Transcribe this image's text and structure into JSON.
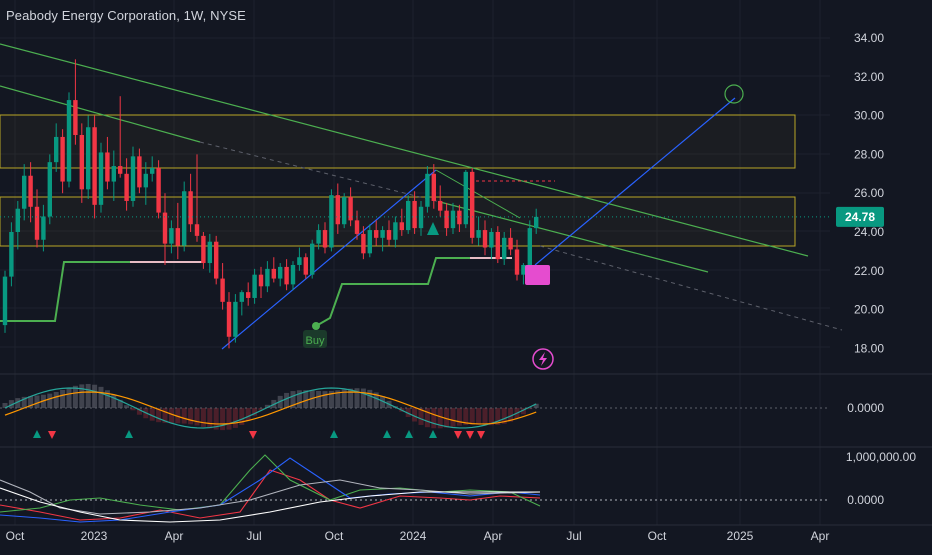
{
  "title": "Peabody Energy Corporation, 1W, NYSE",
  "chart_data": {
    "type": "candlestick",
    "symbol": "Peabody Energy Corporation",
    "interval": "1W",
    "exchange": "NYSE",
    "last_price": 24.78,
    "price_axis": {
      "ticks": [
        "34.00",
        "32.00",
        "30.00",
        "28.00",
        "26.00",
        "24.00",
        "22.00",
        "20.00",
        "18.00"
      ],
      "range": [
        17.2,
        35.0
      ]
    },
    "time_axis": {
      "ticks": [
        "Oct",
        "2023",
        "Apr",
        "Jul",
        "Oct",
        "2024",
        "Apr",
        "Jul",
        "Oct",
        "2025",
        "Apr"
      ]
    },
    "candles": [
      [
        19.2,
        22.0,
        18.8,
        21.7
      ],
      [
        21.7,
        24.5,
        21.2,
        24.0
      ],
      [
        24.0,
        25.6,
        23.1,
        25.2
      ],
      [
        25.2,
        27.5,
        24.6,
        26.9
      ],
      [
        26.9,
        27.6,
        24.5,
        25.3
      ],
      [
        25.3,
        26.2,
        23.2,
        23.6
      ],
      [
        23.6,
        25.4,
        23.0,
        24.8
      ],
      [
        24.8,
        28.0,
        24.4,
        27.6
      ],
      [
        27.6,
        29.6,
        27.1,
        28.9
      ],
      [
        28.9,
        29.3,
        26.0,
        26.6
      ],
      [
        26.6,
        31.2,
        26.3,
        30.8
      ],
      [
        30.8,
        32.9,
        28.5,
        29.0
      ],
      [
        29.0,
        29.6,
        25.5,
        26.2
      ],
      [
        26.2,
        30.0,
        25.7,
        29.4
      ],
      [
        29.4,
        30.0,
        24.7,
        25.4
      ],
      [
        25.4,
        28.6,
        25.0,
        28.1
      ],
      [
        28.1,
        28.9,
        26.2,
        26.6
      ],
      [
        26.6,
        28.2,
        25.6,
        27.4
      ],
      [
        27.4,
        31.0,
        26.8,
        27.0
      ],
      [
        27.0,
        27.8,
        25.1,
        25.6
      ],
      [
        25.6,
        28.4,
        25.3,
        27.9
      ],
      [
        27.9,
        28.3,
        26.0,
        26.3
      ],
      [
        26.3,
        27.6,
        25.4,
        27.0
      ],
      [
        27.0,
        27.9,
        26.6,
        27.3
      ],
      [
        27.3,
        27.7,
        24.7,
        25.0
      ],
      [
        25.0,
        26.0,
        22.3,
        23.4
      ],
      [
        23.4,
        24.6,
        22.9,
        24.2
      ],
      [
        24.2,
        25.5,
        22.6,
        23.3
      ],
      [
        23.3,
        26.6,
        23.0,
        26.1
      ],
      [
        26.1,
        27.0,
        24.0,
        24.4
      ],
      [
        24.4,
        28.0,
        23.5,
        23.8
      ],
      [
        23.8,
        24.0,
        22.1,
        22.4
      ],
      [
        22.4,
        23.9,
        21.9,
        23.5
      ],
      [
        23.5,
        23.8,
        21.3,
        21.6
      ],
      [
        21.6,
        22.4,
        20.0,
        20.4
      ],
      [
        20.4,
        20.9,
        18.0,
        18.6
      ],
      [
        18.6,
        20.8,
        18.3,
        20.4
      ],
      [
        20.4,
        21.0,
        19.7,
        20.9
      ],
      [
        20.9,
        21.4,
        20.2,
        20.6
      ],
      [
        20.6,
        22.1,
        20.3,
        21.8
      ],
      [
        21.8,
        22.2,
        20.6,
        21.2
      ],
      [
        21.2,
        22.5,
        20.9,
        22.1
      ],
      [
        22.1,
        22.7,
        21.4,
        21.6
      ],
      [
        21.6,
        22.4,
        21.2,
        22.2
      ],
      [
        22.2,
        22.6,
        21.0,
        21.3
      ],
      [
        21.3,
        22.5,
        21.0,
        22.3
      ],
      [
        22.3,
        23.2,
        22.0,
        22.7
      ],
      [
        22.7,
        22.9,
        21.6,
        21.8
      ],
      [
        21.8,
        23.6,
        21.6,
        23.4
      ],
      [
        23.4,
        24.4,
        23.1,
        24.1
      ],
      [
        24.1,
        24.5,
        22.9,
        23.2
      ],
      [
        23.2,
        26.2,
        23.0,
        25.9
      ],
      [
        25.9,
        26.5,
        23.9,
        24.4
      ],
      [
        24.4,
        26.0,
        24.2,
        25.8
      ],
      [
        25.8,
        26.3,
        24.3,
        24.6
      ],
      [
        24.6,
        25.1,
        23.6,
        23.9
      ],
      [
        23.9,
        24.3,
        22.6,
        22.9
      ],
      [
        22.9,
        24.4,
        22.7,
        24.1
      ],
      [
        24.1,
        24.6,
        23.3,
        23.7
      ],
      [
        23.7,
        24.3,
        23.0,
        24.1
      ],
      [
        24.1,
        24.6,
        23.3,
        23.6
      ],
      [
        23.6,
        24.8,
        23.2,
        24.5
      ],
      [
        24.5,
        25.2,
        23.8,
        24.1
      ],
      [
        24.1,
        25.9,
        23.9,
        25.6
      ],
      [
        25.6,
        26.1,
        23.9,
        24.2
      ],
      [
        24.2,
        25.6,
        23.8,
        25.3
      ],
      [
        25.3,
        27.4,
        25.0,
        27.0
      ],
      [
        27.0,
        27.5,
        25.2,
        25.6
      ],
      [
        25.6,
        26.4,
        24.8,
        25.1
      ],
      [
        25.1,
        25.5,
        23.8,
        24.2
      ],
      [
        24.2,
        25.5,
        23.9,
        25.1
      ],
      [
        25.1,
        25.4,
        24.0,
        24.4
      ],
      [
        24.4,
        27.2,
        24.2,
        27.1
      ],
      [
        27.1,
        27.3,
        23.4,
        23.7
      ],
      [
        23.7,
        24.8,
        23.3,
        24.1
      ],
      [
        24.1,
        24.6,
        22.8,
        23.2
      ],
      [
        23.2,
        24.2,
        22.6,
        24.0
      ],
      [
        24.0,
        24.3,
        22.4,
        22.6
      ],
      [
        22.6,
        24.0,
        22.3,
        23.7
      ],
      [
        23.7,
        24.2,
        22.8,
        23.1
      ],
      [
        23.1,
        23.6,
        21.5,
        21.8
      ],
      [
        21.8,
        22.4,
        21.3,
        22.3
      ],
      [
        22.3,
        24.6,
        22.0,
        24.2
      ],
      [
        24.2,
        25.2,
        23.9,
        24.78
      ]
    ],
    "oscillator_1": {
      "ticks": [
        "0.0000"
      ],
      "signals": [
        "up",
        "down",
        "up",
        "down",
        "up",
        "up",
        "up",
        "up",
        "down",
        "down",
        "down"
      ]
    },
    "oscillator_2": {
      "ticks": [
        "1,000,000.00",
        "0.0000"
      ]
    },
    "buy_label": "Buy",
    "colors": {
      "up": "#089981",
      "down": "#f23645",
      "background": "#131722",
      "trend": "#4caf50",
      "projection": "#2962ff",
      "zone": "#b8a626",
      "last_price": "#089981"
    }
  }
}
